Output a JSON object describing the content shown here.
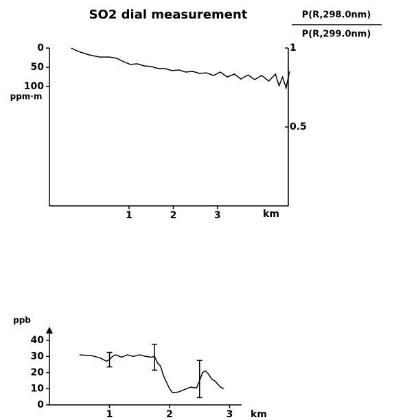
{
  "chart_data": [
    {
      "type": "line",
      "title": "SO2 dial measurement",
      "ylabel": "ppm·m",
      "y2label_top": "P(R,298.0nm)",
      "y2label_bottom": "P(R,299.0nm)",
      "xlabel": "km",
      "xlim": [
        -0.8,
        4.6
      ],
      "xticks": [
        1,
        2,
        3
      ],
      "ylim": [
        410,
        0
      ],
      "yticks": [
        0,
        50,
        100
      ],
      "y2lim": [
        0,
        1
      ],
      "y2ticks": [
        0.5,
        1
      ],
      "x": [
        -0.31,
        -0.14,
        0.09,
        0.33,
        0.56,
        0.72,
        0.88,
        1.03,
        1.19,
        1.34,
        1.5,
        1.66,
        1.81,
        1.97,
        2.13,
        2.28,
        2.44,
        2.59,
        2.75,
        2.91,
        3.06,
        3.22,
        3.38,
        3.53,
        3.69,
        3.84,
        4.0,
        4.16,
        4.31,
        4.39,
        4.47,
        4.55,
        4.63
      ],
      "series": [
        {
          "color": "#000000",
          "axis": "y2",
          "values": [
            1,
            0.978,
            0.957,
            0.943,
            0.943,
            0.935,
            0.913,
            0.896,
            0.9,
            0.887,
            0.883,
            0.87,
            0.87,
            0.857,
            0.861,
            0.848,
            0.852,
            0.839,
            0.843,
            0.826,
            0.848,
            0.817,
            0.835,
            0.804,
            0.83,
            0.8,
            0.826,
            0.791,
            0.835,
            0.761,
            0.817,
            0.748,
            0.852
          ]
        }
      ]
    },
    {
      "type": "line",
      "ylabel": "ppb",
      "xlabel": "km",
      "xlim": [
        0,
        3.2
      ],
      "xticks": [
        1,
        2,
        3
      ],
      "ylim": [
        0,
        45
      ],
      "yticks": [
        0,
        10,
        20,
        30,
        40
      ],
      "x": [
        0.5,
        0.7,
        0.85,
        0.95,
        1.0,
        1.05,
        1.1,
        1.2,
        1.3,
        1.4,
        1.5,
        1.6,
        1.7,
        1.75,
        1.8,
        1.85,
        1.9,
        2.0,
        2.05,
        2.15,
        2.25,
        2.35,
        2.45,
        2.5,
        2.55,
        2.6,
        2.65,
        2.7,
        2.75,
        2.85,
        2.9
      ],
      "series": [
        {
          "color": "#000000",
          "values": [
            31,
            30.5,
            29,
            27,
            28,
            30,
            31,
            29.5,
            31,
            30,
            31,
            30,
            29.5,
            30,
            26,
            24,
            18,
            10,
            7.5,
            8,
            9.5,
            11,
            10.5,
            15,
            20,
            21,
            19,
            16,
            15,
            11,
            10
          ]
        }
      ],
      "error_bars": {
        "x": [
          1.0,
          1.75,
          2.5
        ],
        "values": [
          28,
          29.5,
          16
        ],
        "errors": [
          4.5,
          8,
          11.5
        ]
      }
    }
  ]
}
